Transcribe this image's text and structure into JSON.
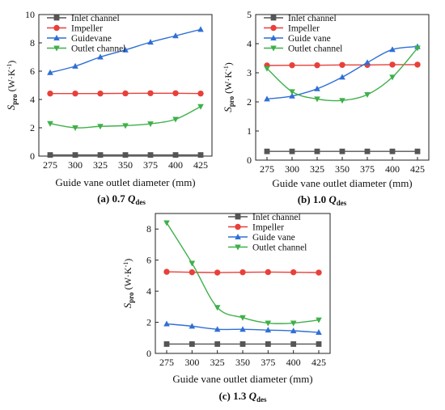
{
  "chart_data": [
    {
      "type": "line",
      "x": [
        275,
        300,
        325,
        350,
        375,
        400,
        425
      ],
      "xlabel": "Guide vane outlet diameter (mm)",
      "ylabel_main": "S",
      "ylabel_sub": "pro",
      "ylabel_unit": " (W·K",
      "ylabel_exp": "-1",
      "ylabel_close": ")",
      "ylim": [
        0,
        10
      ],
      "yticks": [
        0,
        2,
        4,
        6,
        8,
        10
      ],
      "caption_prefix": "(a) 0.7 ",
      "caption_q": "Q",
      "caption_sub": "des",
      "legend_position": "top-left",
      "series": [
        {
          "name": "Inlet channel",
          "color": "#555555",
          "marker": "square",
          "values": [
            0.08,
            0.08,
            0.08,
            0.08,
            0.08,
            0.08,
            0.08
          ],
          "smooth": false
        },
        {
          "name": "Impeller",
          "color": "#e8403a",
          "marker": "circle",
          "values": [
            4.42,
            4.42,
            4.42,
            4.43,
            4.44,
            4.44,
            4.42
          ],
          "smooth": false
        },
        {
          "name": "Guidevane",
          "color": "#2f6fd6",
          "marker": "triangle-up",
          "values": [
            5.9,
            6.35,
            7.0,
            7.5,
            8.05,
            8.5,
            8.95
          ],
          "smooth": true
        },
        {
          "name": "Outlet channel",
          "color": "#3fb04a",
          "marker": "triangle-down",
          "values": [
            2.3,
            2.0,
            2.1,
            2.15,
            2.28,
            2.6,
            3.5
          ],
          "smooth": true
        }
      ]
    },
    {
      "type": "line",
      "x": [
        275,
        300,
        325,
        350,
        375,
        400,
        425
      ],
      "xlabel": "Guide vane outlet diameter (mm)",
      "ylabel_main": "S",
      "ylabel_sub": "pro",
      "ylabel_unit": " (W·K",
      "ylabel_exp": "-1",
      "ylabel_close": ")",
      "ylim": [
        0,
        5
      ],
      "yticks": [
        0,
        1,
        2,
        3,
        4,
        5
      ],
      "caption_prefix": "(b) 1.0 ",
      "caption_q": "Q",
      "caption_sub": "des",
      "legend_position": "top-left",
      "series": [
        {
          "name": "Inlet channel",
          "color": "#555555",
          "marker": "square",
          "values": [
            0.3,
            0.3,
            0.3,
            0.3,
            0.3,
            0.3,
            0.3
          ],
          "smooth": false
        },
        {
          "name": "Impeller",
          "color": "#e8403a",
          "marker": "circle",
          "values": [
            3.25,
            3.26,
            3.26,
            3.27,
            3.27,
            3.28,
            3.28
          ],
          "smooth": false
        },
        {
          "name": "Guide vane",
          "color": "#2f6fd6",
          "marker": "triangle-up",
          "values": [
            2.1,
            2.2,
            2.45,
            2.85,
            3.35,
            3.8,
            3.9
          ],
          "smooth": true
        },
        {
          "name": "Outlet channel",
          "color": "#3fb04a",
          "marker": "triangle-down",
          "values": [
            3.15,
            2.35,
            2.1,
            2.05,
            2.25,
            2.85,
            3.85
          ],
          "smooth": true
        }
      ]
    },
    {
      "type": "line",
      "x": [
        275,
        300,
        325,
        350,
        375,
        400,
        425
      ],
      "xlabel": "Guide vane outlet diameter (mm)",
      "ylabel_main": "S",
      "ylabel_sub": "pro",
      "ylabel_unit": " (W·K",
      "ylabel_exp": "-1",
      "ylabel_close": ")",
      "ylim": [
        0,
        9
      ],
      "yticks": [
        0,
        2,
        4,
        6,
        8
      ],
      "caption_prefix": "(c) 1.3 ",
      "caption_q": "Q",
      "caption_sub": "des",
      "legend_position": "top-right",
      "series": [
        {
          "name": "Inlet channel",
          "color": "#555555",
          "marker": "square",
          "values": [
            0.6,
            0.6,
            0.6,
            0.6,
            0.6,
            0.6,
            0.6
          ],
          "smooth": false
        },
        {
          "name": "Impeller",
          "color": "#e8403a",
          "marker": "circle",
          "values": [
            5.25,
            5.22,
            5.2,
            5.22,
            5.23,
            5.22,
            5.2
          ],
          "smooth": false
        },
        {
          "name": "Guide vane",
          "color": "#2f6fd6",
          "marker": "triangle-up",
          "values": [
            1.9,
            1.75,
            1.55,
            1.55,
            1.5,
            1.45,
            1.35
          ],
          "smooth": true
        },
        {
          "name": "Outlet channel",
          "color": "#3fb04a",
          "marker": "triangle-down",
          "values": [
            8.4,
            5.8,
            2.95,
            2.3,
            1.95,
            1.95,
            2.15
          ],
          "smooth": true
        }
      ]
    }
  ]
}
